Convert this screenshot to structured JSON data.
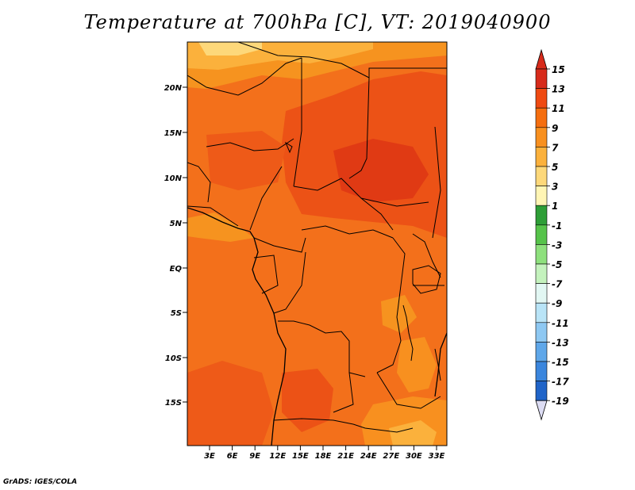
{
  "title": "Temperature at 700hPa [C], VT: 2019040900",
  "credit": "GrADS: IGES/COLA",
  "map": {
    "lat_ticks": [
      "20N",
      "15N",
      "10N",
      "5N",
      "EQ",
      "5S",
      "10S",
      "15S"
    ],
    "lon_ticks": [
      "3E",
      "6E",
      "9E",
      "12E",
      "15E",
      "18E",
      "21E",
      "24E",
      "27E",
      "30E",
      "33E"
    ]
  },
  "colorbar": {
    "labels": [
      "15",
      "13",
      "11",
      "9",
      "7",
      "5",
      "3",
      "1",
      "-1",
      "-3",
      "-5",
      "-7",
      "-9",
      "-11",
      "-13",
      "-15",
      "-17",
      "-19"
    ],
    "colors": [
      "#d72b1b",
      "#ef4a12",
      "#f56e0f",
      "#f8901f",
      "#fbb13c",
      "#fdd87a",
      "#fff5b4",
      "#2e9e37",
      "#56c34a",
      "#8ee07d",
      "#c4f2bd",
      "#e2f7f3",
      "#b9e4f7",
      "#8ec8f2",
      "#5fa7e9",
      "#3b86dd",
      "#2064c8",
      "#0d46ad",
      "#082a8a",
      "#0a0a5e"
    ],
    "top_arrow_color": "#d72b1b",
    "bottom_arrow_color": "#dcdcf3"
  },
  "field_colors": {
    "warmest": "#e03a14",
    "warm": "#f0561a",
    "base": "#f3701b",
    "mild": "#f6931f",
    "cool": "#fbb13c",
    "coolest": "#fdd87a"
  }
}
